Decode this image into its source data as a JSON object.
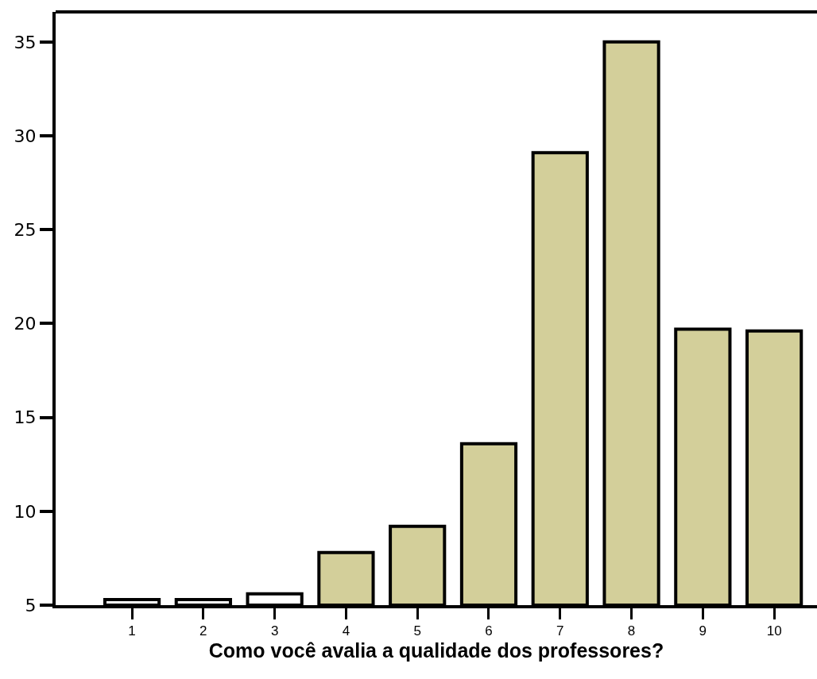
{
  "chart_data": {
    "type": "bar",
    "xlabel": "Como você avalia a qualidade dos professores?",
    "categories": [
      "1",
      "2",
      "3",
      "4",
      "5",
      "6",
      "7",
      "8",
      "9",
      "10"
    ],
    "values": [
      5.3,
      5.3,
      5.6,
      7.8,
      9.2,
      13.6,
      29.1,
      35,
      19.7,
      19.6
    ],
    "colors": [
      "#ffffff",
      "#ffffff",
      "#ffffff",
      "#d3cf9a",
      "#d3cf9a",
      "#d3cf9a",
      "#d3cf9a",
      "#d3cf9a",
      "#d3cf9a",
      "#d3cf9a"
    ],
    "ylim": [
      5,
      36.6
    ],
    "yticks": [
      5,
      10,
      15,
      20,
      25,
      30,
      35
    ],
    "legend": false
  }
}
